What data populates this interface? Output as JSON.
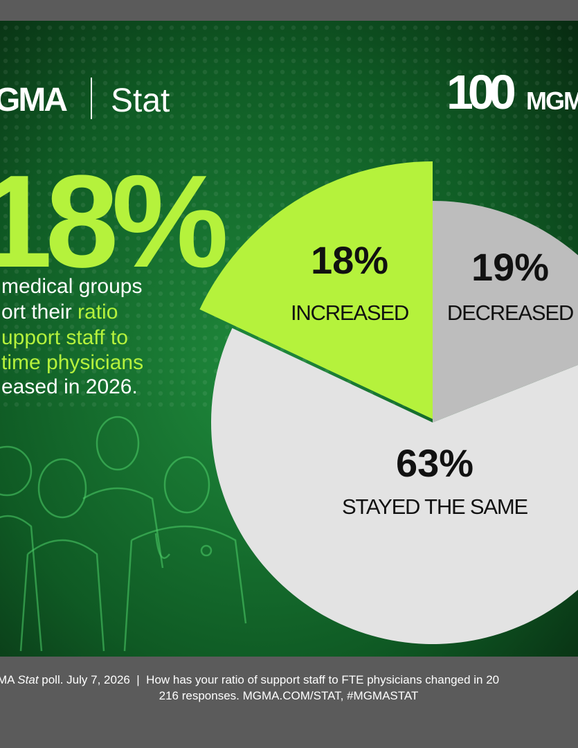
{
  "header": {
    "logo": "GMA",
    "product": "Stat",
    "badge_number": "100",
    "badge_text": "MGM"
  },
  "headline": {
    "stat": "18%",
    "lines": [
      [
        "medical groups"
      ],
      [
        "ort their ",
        "ratio"
      ],
      [
        "upport staff to"
      ],
      [
        "time physicians"
      ],
      [
        "eased in 2026."
      ]
    ]
  },
  "chart_data": {
    "type": "pie",
    "categories": [
      "INCREASED",
      "DECREASED",
      "STAYED THE SAME"
    ],
    "values": [
      18,
      19,
      63
    ],
    "value_labels": [
      "18%",
      "19%",
      "63%"
    ],
    "colors": [
      "#b5f23c",
      "#bdbdbd",
      "#e3e3e3"
    ],
    "exploded": [
      true,
      false,
      false
    ]
  },
  "footer": {
    "line1": [
      "MA ",
      "Stat",
      " poll. July 7, 2026  |  How has your ratio of support staff to FTE physicians changed in 20"
    ],
    "line2": "216 responses. MGMA.COM/STAT, #MGMASTAT"
  }
}
